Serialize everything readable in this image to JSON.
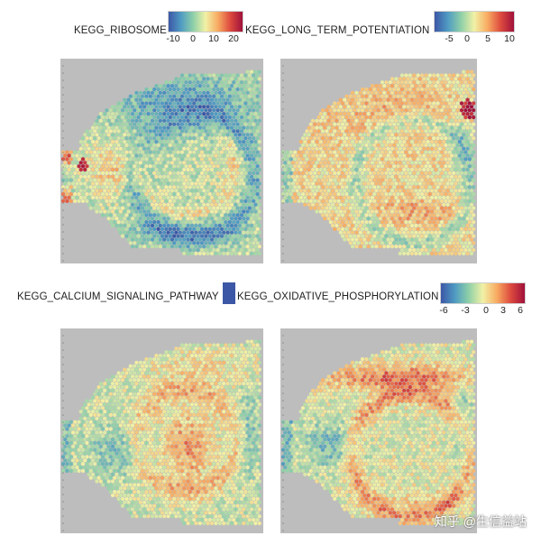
{
  "panels": [
    {
      "title": "KEGG_RIBOSOME",
      "legend_ticks": [
        "-10",
        "0",
        "10",
        "20"
      ],
      "pattern": "ribosome"
    },
    {
      "title": "KEGG_LONG_TERM_POTENTIATION",
      "legend_ticks": [
        "-5",
        "0",
        "5",
        "10"
      ],
      "pattern": "ltp"
    },
    {
      "title": "KEGG_CALCIUM_SIGNALING_PATHWAY",
      "legend_ticks": [],
      "pattern": "calcium"
    },
    {
      "title": "KEGG_OXIDATIVE_PHOSPHORYLATION",
      "legend_ticks": [
        "-6",
        "-3",
        "0",
        "3",
        "6"
      ],
      "pattern": "oxphos"
    }
  ],
  "colormap": [
    "#3c57a6",
    "#4f9bc3",
    "#8fd0a8",
    "#f1f1a6",
    "#f8ab62",
    "#dd4a3e",
    "#a0113b"
  ],
  "background_color": "#bdbdbd",
  "watermark": "知乎 @生信益站"
}
